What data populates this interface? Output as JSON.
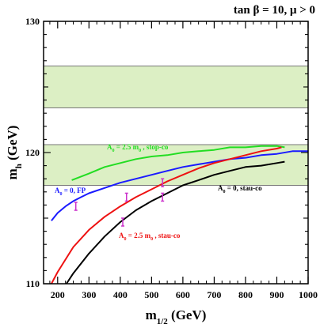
{
  "chart_data": {
    "type": "line",
    "title": "tan β = 10,  μ > 0",
    "xlabel": "m1/2 (GeV)",
    "xlabel_main": "m",
    "xlabel_sub": "1/2",
    "xlabel_unit": " (GeV)",
    "ylabel": "mh (GeV)",
    "ylabel_main": "m",
    "ylabel_sub": "h",
    "ylabel_unit": " (GeV)",
    "xlim": [
      155,
      1000
    ],
    "ylim": [
      110,
      130
    ],
    "grid": false,
    "xticks": [
      200,
      300,
      400,
      500,
      600,
      700,
      800,
      900,
      1000
    ],
    "yticks": [
      110,
      120,
      130
    ],
    "xtick_labels": [
      "200",
      "300",
      "400",
      "500",
      "600",
      "700",
      "800",
      "900",
      "1000"
    ],
    "ytick_labels": [
      "110",
      "120",
      "130"
    ],
    "bands": [
      {
        "y": [
          123.4,
          126.6
        ],
        "color": "#dcefc4"
      },
      {
        "y": [
          117.5,
          120.6
        ],
        "color": "#dcefc4"
      }
    ],
    "series": [
      {
        "name": "A0 = 2.5 m0 , stop-co",
        "color": "#22dd22",
        "x": [
          245,
          300,
          350,
          400,
          450,
          500,
          550,
          600,
          650,
          700,
          750,
          800,
          850,
          900,
          925
        ],
        "y": [
          117.9,
          118.4,
          118.9,
          119.2,
          119.5,
          119.7,
          119.8,
          120.0,
          120.1,
          120.2,
          120.4,
          120.4,
          120.5,
          120.5,
          120.4
        ]
      },
      {
        "name": "A0 = 0, FP",
        "color": "#1a1aff",
        "x": [
          180,
          200,
          225,
          250,
          275,
          300,
          350,
          400,
          450,
          500,
          550,
          600,
          650,
          700,
          750,
          800,
          850,
          900,
          950,
          1000
        ],
        "y": [
          114.8,
          115.4,
          115.9,
          116.3,
          116.6,
          116.9,
          117.3,
          117.7,
          118.0,
          118.3,
          118.6,
          118.9,
          119.1,
          119.3,
          119.5,
          119.6,
          119.8,
          119.9,
          120.1,
          120.1
        ]
      },
      {
        "name": "A0 = 2.5 m0 , stau-co",
        "color": "#ee1111",
        "x": [
          180,
          200,
          250,
          300,
          350,
          400,
          450,
          500,
          550,
          600,
          650,
          700,
          750,
          800,
          850,
          900,
          915
        ],
        "y": [
          110.0,
          110.9,
          112.8,
          114.1,
          115.1,
          115.9,
          116.6,
          117.2,
          117.8,
          118.3,
          118.8,
          119.2,
          119.5,
          119.8,
          120.1,
          120.3,
          120.4
        ]
      },
      {
        "name": "A0 = 0, stau-co",
        "color": "#000000",
        "x": [
          228,
          250,
          300,
          350,
          400,
          450,
          500,
          550,
          600,
          650,
          700,
          750,
          800,
          850,
          900,
          925
        ],
        "y": [
          110.0,
          110.8,
          112.3,
          113.6,
          114.7,
          115.6,
          116.3,
          116.9,
          117.5,
          117.9,
          118.3,
          118.6,
          118.9,
          119.0,
          119.2,
          119.3
        ]
      }
    ],
    "markers": [
      {
        "x": 258,
        "y": 115.9,
        "color": "#cc33cc"
      },
      {
        "x": 408,
        "y": 114.7,
        "color": "#cc33cc"
      },
      {
        "x": 420,
        "y": 116.6,
        "color": "#cc33cc"
      },
      {
        "x": 535,
        "y": 117.7,
        "color": "#cc33cc"
      },
      {
        "x": 535,
        "y": 116.6,
        "color": "#cc33cc"
      }
    ],
    "annotations": {
      "stop_co": {
        "main": "A",
        "sub": "0",
        "mid": " = 2.5 m",
        "sub2": "0",
        "tail": " , stop-co",
        "color": "#22dd22"
      },
      "fp": {
        "main": "A",
        "sub": "0",
        "tail": " = 0, FP",
        "color": "#1a1aff"
      },
      "stau_co_red": {
        "main": "A",
        "sub": "0",
        "mid": " = 2.5 m",
        "sub2": "0",
        "tail": " , stau-co",
        "color": "#ee1111"
      },
      "stau_co_black": {
        "main": "A",
        "sub": "0",
        "tail": " = 0, stau-co",
        "color": "#000000"
      }
    }
  }
}
